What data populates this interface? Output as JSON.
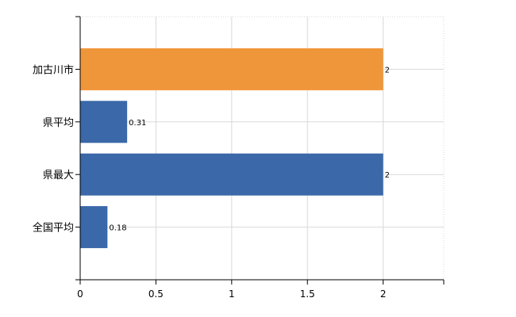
{
  "chart_data": {
    "type": "bar",
    "orientation": "horizontal",
    "categories": [
      "加古川市",
      "県平均",
      "県最大",
      "全国平均"
    ],
    "values": [
      2,
      0.31,
      2,
      0.18
    ],
    "value_labels": [
      "2",
      "0.31",
      "2",
      "0.18"
    ],
    "bar_colors": [
      "#f0963a",
      "#3a68a8",
      "#3a68a8",
      "#3a68a8"
    ],
    "xlim": [
      0,
      2.4
    ],
    "x_ticks": [
      0,
      0.5,
      1,
      1.5,
      2
    ],
    "x_tick_labels": [
      "0",
      "0.5",
      "1",
      "1.5",
      "2"
    ],
    "grid": true,
    "grid_color": "#d9d9d9",
    "title": "",
    "xlabel": "",
    "ylabel": ""
  }
}
